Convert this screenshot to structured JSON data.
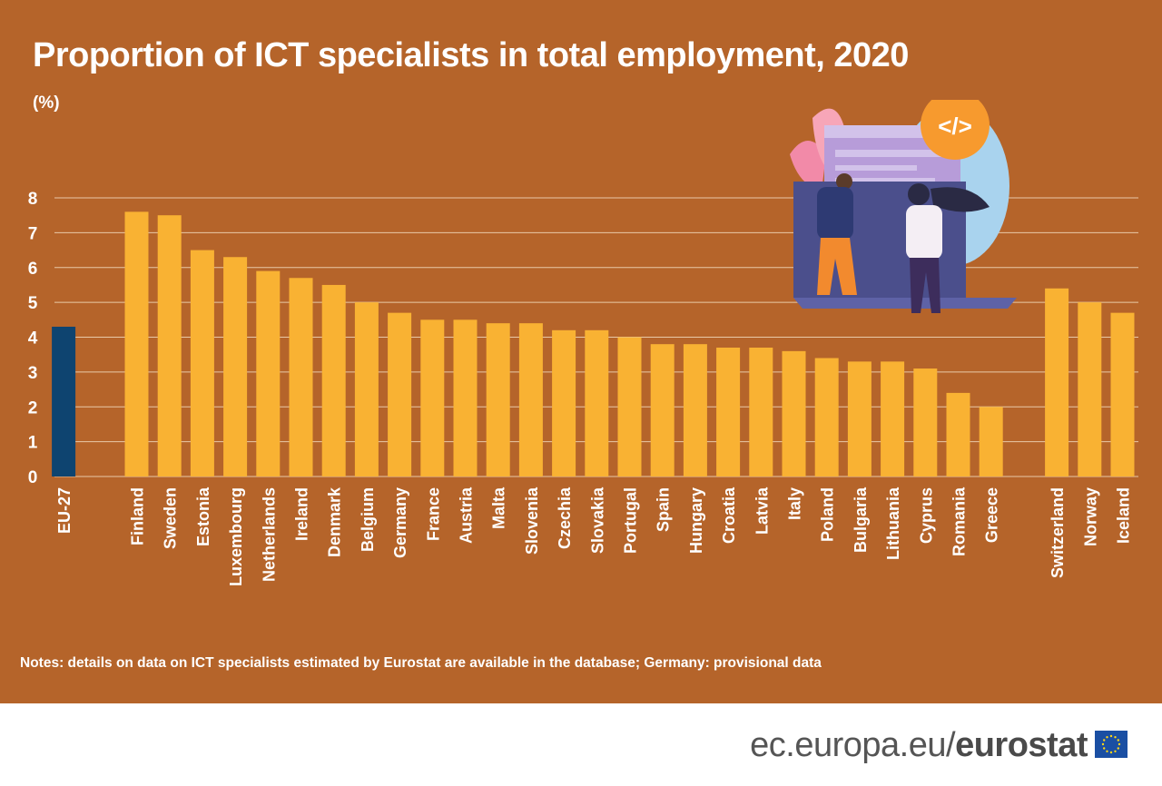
{
  "title": "Proportion of ICT specialists in total employment, 2020",
  "unit": "(%)",
  "note": "Notes: details on data on ICT specialists estimated by Eurostat are available in the database; Germany: provisional data",
  "footer": {
    "domain": "ec.europa.eu/",
    "brand": "eurostat"
  },
  "colors": {
    "background": "#b5642a",
    "bar": "#f9b233",
    "highlight": "#0e4470",
    "text": "#ffffff"
  },
  "illustration": {
    "code_badge": "</>"
  },
  "chart_data": {
    "type": "bar",
    "title": "Proportion of ICT specialists in total employment, 2020",
    "ylabel": "(%)",
    "ylim": [
      0,
      8
    ],
    "yticks": [
      0,
      1,
      2,
      3,
      4,
      5,
      6,
      7,
      8
    ],
    "grid": true,
    "groups": [
      {
        "categories": [
          "EU-27"
        ],
        "values": [
          4.3
        ]
      },
      {
        "categories": [
          "Finland",
          "Sweden",
          "Estonia",
          "Luxembourg",
          "Netherlands",
          "Ireland",
          "Denmark",
          "Belgium",
          "Germany",
          "France",
          "Austria",
          "Malta",
          "Slovenia",
          "Czechia",
          "Slovakia",
          "Portugal",
          "Spain",
          "Hungary",
          "Croatia",
          "Latvia",
          "Italy",
          "Poland",
          "Bulgaria",
          "Lithuania",
          "Cyprus",
          "Romania",
          "Greece"
        ],
        "values": [
          7.6,
          7.5,
          6.5,
          6.3,
          5.9,
          5.7,
          5.5,
          5.0,
          4.7,
          4.5,
          4.5,
          4.4,
          4.4,
          4.2,
          4.2,
          4.0,
          3.8,
          3.8,
          3.7,
          3.7,
          3.6,
          3.4,
          3.3,
          3.3,
          3.1,
          2.4,
          2.0
        ]
      },
      {
        "categories": [
          "Switzerland",
          "Norway",
          "Iceland"
        ],
        "values": [
          5.4,
          5.0,
          4.7
        ]
      }
    ],
    "highlight": [
      "EU-27"
    ]
  }
}
